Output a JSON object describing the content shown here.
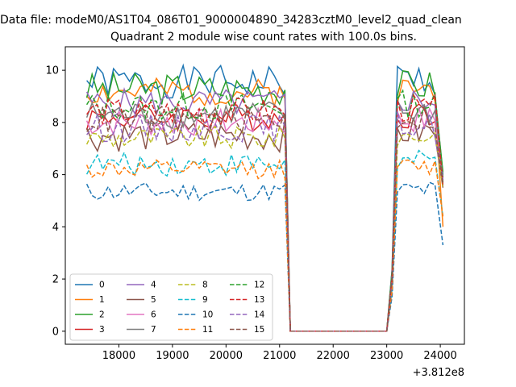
{
  "suptitle": "Data file: modeM0/AS1T04_086T01_9000004890_34283cztM0_level2_quad_clean",
  "chart_data": {
    "type": "line",
    "title": "Quadrant 2 module wise count rates with 100.0s bins.",
    "xlabel": "",
    "ylabel": "",
    "x_offset_label": "+3.812e8",
    "xlim": [
      17000,
      24450
    ],
    "ylim": [
      -0.5,
      10.9
    ],
    "x_ticks": [
      18000,
      19000,
      20000,
      21000,
      22000,
      23000,
      24000
    ],
    "x_tick_labels": [
      "18000",
      "19000",
      "20000",
      "21000",
      "22000",
      "23000",
      "24000"
    ],
    "y_ticks": [
      0,
      2,
      4,
      6,
      8,
      10
    ],
    "y_tick_labels": [
      "0",
      "2",
      "4",
      "6",
      "8",
      "10"
    ],
    "grid": false,
    "legend_position": "lower-left",
    "legend_ncol": 4,
    "bin_width": 100,
    "x_start": 17400,
    "gap": {
      "from": 21200,
      "to": 23000,
      "value": 0
    },
    "series": [
      {
        "name": "0",
        "color": "#1f77b4",
        "dash": "solid",
        "mean": 9.55,
        "spread": 0.35,
        "seed": 1,
        "tail": 6.0
      },
      {
        "name": "1",
        "color": "#ff7f0e",
        "dash": "solid",
        "mean": 9.15,
        "spread": 0.3,
        "seed": 2,
        "tail": 4.0
      },
      {
        "name": "2",
        "color": "#2ca02c",
        "dash": "solid",
        "mean": 9.3,
        "spread": 0.35,
        "seed": 3,
        "tail": 6.1
      },
      {
        "name": "3",
        "color": "#d62728",
        "dash": "solid",
        "mean": 8.2,
        "spread": 0.3,
        "seed": 4,
        "tail": 5.9
      },
      {
        "name": "4",
        "color": "#9467bd",
        "dash": "solid",
        "mean": 8.75,
        "spread": 0.3,
        "seed": 5,
        "tail": 5.8
      },
      {
        "name": "5",
        "color": "#8c564b",
        "dash": "solid",
        "mean": 7.5,
        "spread": 0.35,
        "seed": 6,
        "tail": 5.5
      },
      {
        "name": "6",
        "color": "#e377c2",
        "dash": "solid",
        "mean": 8.0,
        "spread": 0.3,
        "seed": 7,
        "tail": 5.9
      },
      {
        "name": "7",
        "color": "#7f7f7f",
        "dash": "solid",
        "mean": 8.3,
        "spread": 0.3,
        "seed": 8,
        "tail": 5.9
      },
      {
        "name": "8",
        "color": "#bcbd22",
        "dash": "dashed",
        "mean": 7.4,
        "spread": 0.25,
        "seed": 9,
        "tail": 5.5
      },
      {
        "name": "9",
        "color": "#17becf",
        "dash": "dashed",
        "mean": 6.4,
        "spread": 0.25,
        "seed": 10,
        "tail": 4.4
      },
      {
        "name": "10",
        "color": "#1f77b4",
        "dash": "dashed",
        "mean": 5.35,
        "spread": 0.2,
        "seed": 11,
        "tail": 3.3
      },
      {
        "name": "11",
        "color": "#ff7f0e",
        "dash": "dashed",
        "mean": 6.2,
        "spread": 0.2,
        "seed": 12,
        "tail": 4.4
      },
      {
        "name": "12",
        "color": "#2ca02c",
        "dash": "dashed",
        "mean": 8.6,
        "spread": 0.3,
        "seed": 13,
        "tail": 5.7
      },
      {
        "name": "13",
        "color": "#d62728",
        "dash": "dashed",
        "mean": 8.4,
        "spread": 0.3,
        "seed": 14,
        "tail": 5.6
      },
      {
        "name": "14",
        "color": "#9467bd",
        "dash": "dashed",
        "mean": 7.8,
        "spread": 0.3,
        "seed": 15,
        "tail": 5.8
      },
      {
        "name": "15",
        "color": "#8c564b",
        "dash": "dashed",
        "mean": 8.1,
        "spread": 0.3,
        "seed": 16,
        "tail": 5.6
      }
    ]
  }
}
